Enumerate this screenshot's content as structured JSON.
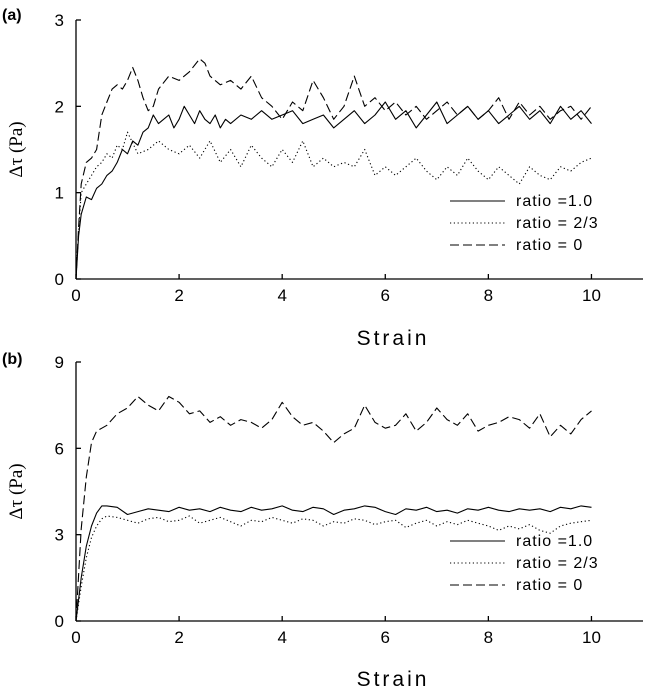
{
  "colors": {
    "background": "#ffffff",
    "ink": "#000000"
  },
  "chart_data": [
    {
      "type": "line",
      "panel_label": "(a)",
      "xlabel": "Strain",
      "ylabel": "Δτ (Pa)",
      "xlim": [
        0,
        11
      ],
      "ylim": [
        0,
        3
      ],
      "xticks": [
        0,
        2,
        4,
        6,
        8,
        10
      ],
      "yticks": [
        0,
        1,
        2,
        3
      ],
      "grid": false,
      "legend_position": "lower-right",
      "series": [
        {
          "name": "ratio =1.0",
          "style": "solid",
          "x": [
            0,
            0.05,
            0.1,
            0.2,
            0.3,
            0.4,
            0.5,
            0.6,
            0.7,
            0.8,
            0.9,
            1.0,
            1.1,
            1.2,
            1.3,
            1.4,
            1.5,
            1.6,
            1.7,
            1.8,
            1.9,
            2.0,
            2.1,
            2.2,
            2.3,
            2.4,
            2.5,
            2.6,
            2.7,
            2.8,
            2.9,
            3.0,
            3.2,
            3.4,
            3.6,
            3.8,
            4.0,
            4.2,
            4.4,
            4.6,
            4.8,
            5.0,
            5.2,
            5.4,
            5.6,
            5.8,
            6.0,
            6.2,
            6.4,
            6.6,
            6.8,
            7.0,
            7.2,
            7.4,
            7.6,
            7.8,
            8.0,
            8.2,
            8.4,
            8.6,
            8.8,
            9.0,
            9.2,
            9.4,
            9.6,
            9.8,
            10.0
          ],
          "y": [
            0,
            0.5,
            0.75,
            0.95,
            0.92,
            1.05,
            1.1,
            1.2,
            1.25,
            1.35,
            1.5,
            1.45,
            1.6,
            1.55,
            1.7,
            1.75,
            1.9,
            1.8,
            1.85,
            1.9,
            1.75,
            1.85,
            2.0,
            1.9,
            1.8,
            1.95,
            1.85,
            1.8,
            1.9,
            1.75,
            1.85,
            1.8,
            1.9,
            1.85,
            1.95,
            1.85,
            1.9,
            1.95,
            1.8,
            1.85,
            1.9,
            1.75,
            1.85,
            1.95,
            1.8,
            1.9,
            2.05,
            1.85,
            1.95,
            1.75,
            1.9,
            2.05,
            1.8,
            1.9,
            2.0,
            1.85,
            1.95,
            1.8,
            1.9,
            2.0,
            1.85,
            1.95,
            1.8,
            2.0,
            1.85,
            1.95,
            1.8
          ]
        },
        {
          "name": "ratio = 2/3",
          "style": "dotted",
          "x": [
            0,
            0.05,
            0.1,
            0.2,
            0.3,
            0.4,
            0.5,
            0.6,
            0.7,
            0.8,
            0.9,
            1.0,
            1.2,
            1.4,
            1.6,
            1.8,
            2.0,
            2.2,
            2.4,
            2.6,
            2.8,
            3.0,
            3.2,
            3.4,
            3.6,
            3.8,
            4.0,
            4.2,
            4.4,
            4.6,
            4.8,
            5.0,
            5.2,
            5.4,
            5.6,
            5.8,
            6.0,
            6.2,
            6.4,
            6.6,
            6.8,
            7.0,
            7.2,
            7.4,
            7.6,
            7.8,
            8.0,
            8.2,
            8.4,
            8.6,
            8.8,
            9.0,
            9.2,
            9.4,
            9.6,
            9.8,
            10.0
          ],
          "y": [
            0,
            0.55,
            1.0,
            1.1,
            1.2,
            1.3,
            1.35,
            1.45,
            1.4,
            1.55,
            1.5,
            1.7,
            1.45,
            1.5,
            1.6,
            1.5,
            1.45,
            1.55,
            1.4,
            1.6,
            1.35,
            1.5,
            1.3,
            1.55,
            1.4,
            1.3,
            1.5,
            1.35,
            1.6,
            1.3,
            1.4,
            1.3,
            1.35,
            1.3,
            1.5,
            1.2,
            1.3,
            1.2,
            1.3,
            1.4,
            1.25,
            1.15,
            1.3,
            1.2,
            1.4,
            1.25,
            1.15,
            1.3,
            1.2,
            1.1,
            1.3,
            1.2,
            1.15,
            1.3,
            1.25,
            1.35,
            1.4
          ]
        },
        {
          "name": "ratio = 0",
          "style": "dashed",
          "x": [
            0,
            0.05,
            0.1,
            0.2,
            0.3,
            0.4,
            0.5,
            0.6,
            0.7,
            0.8,
            0.9,
            1.0,
            1.1,
            1.2,
            1.3,
            1.4,
            1.5,
            1.6,
            1.8,
            2.0,
            2.2,
            2.4,
            2.5,
            2.6,
            2.8,
            3.0,
            3.2,
            3.4,
            3.6,
            3.8,
            4.0,
            4.2,
            4.4,
            4.6,
            4.8,
            5.0,
            5.2,
            5.4,
            5.6,
            5.8,
            6.0,
            6.2,
            6.4,
            6.6,
            6.8,
            7.0,
            7.2,
            7.4,
            7.6,
            7.8,
            8.0,
            8.2,
            8.4,
            8.6,
            8.8,
            9.0,
            9.2,
            9.4,
            9.6,
            9.8,
            10.0
          ],
          "y": [
            0,
            0.6,
            1.1,
            1.35,
            1.4,
            1.5,
            1.9,
            2.05,
            2.2,
            2.25,
            2.2,
            2.3,
            2.45,
            2.3,
            2.1,
            1.95,
            2.0,
            2.2,
            2.35,
            2.3,
            2.4,
            2.55,
            2.5,
            2.35,
            2.25,
            2.3,
            2.2,
            2.35,
            2.1,
            2.0,
            1.85,
            2.05,
            1.95,
            2.3,
            2.1,
            1.85,
            2.0,
            2.35,
            2.0,
            2.1,
            1.95,
            2.05,
            1.9,
            2.0,
            1.85,
            1.95,
            2.05,
            1.9,
            2.0,
            1.85,
            1.95,
            2.1,
            1.85,
            2.05,
            1.9,
            2.0,
            1.85,
            1.95,
            2.0,
            1.85,
            2.0
          ]
        }
      ]
    },
    {
      "type": "line",
      "panel_label": "(b)",
      "xlabel": "Strain",
      "ylabel": "Δτ (Pa)",
      "xlim": [
        0,
        11
      ],
      "ylim": [
        0,
        9
      ],
      "xticks": [
        0,
        2,
        4,
        6,
        8,
        10
      ],
      "yticks": [
        0,
        3,
        6,
        9
      ],
      "grid": false,
      "legend_position": "lower-right",
      "series": [
        {
          "name": "ratio =1.0",
          "style": "solid",
          "x": [
            0,
            0.1,
            0.2,
            0.3,
            0.4,
            0.5,
            0.6,
            0.8,
            1.0,
            1.2,
            1.4,
            1.6,
            1.8,
            2.0,
            2.2,
            2.4,
            2.6,
            2.8,
            3.0,
            3.2,
            3.4,
            3.6,
            3.8,
            4.0,
            4.2,
            4.4,
            4.6,
            4.8,
            5.0,
            5.2,
            5.4,
            5.6,
            5.8,
            6.0,
            6.2,
            6.4,
            6.6,
            6.8,
            7.0,
            7.2,
            7.4,
            7.6,
            7.8,
            8.0,
            8.2,
            8.4,
            8.6,
            8.8,
            9.0,
            9.2,
            9.4,
            9.6,
            9.8,
            10.0
          ],
          "y": [
            0,
            1.5,
            2.6,
            3.3,
            3.75,
            4.0,
            4.0,
            3.95,
            3.7,
            3.8,
            3.9,
            3.85,
            3.8,
            3.95,
            3.85,
            3.9,
            3.8,
            3.95,
            3.85,
            3.8,
            3.95,
            3.85,
            3.9,
            4.0,
            3.85,
            3.8,
            3.95,
            3.9,
            3.7,
            3.85,
            3.9,
            4.0,
            3.95,
            3.8,
            3.7,
            3.9,
            3.85,
            3.95,
            3.8,
            3.85,
            3.75,
            3.9,
            3.85,
            3.95,
            3.85,
            3.8,
            3.9,
            3.85,
            3.9,
            3.8,
            3.95,
            3.9,
            4.0,
            3.95
          ]
        },
        {
          "name": "ratio = 2/3",
          "style": "dotted",
          "x": [
            0,
            0.1,
            0.2,
            0.3,
            0.4,
            0.5,
            0.6,
            0.8,
            1.0,
            1.2,
            1.4,
            1.6,
            1.8,
            2.0,
            2.2,
            2.4,
            2.6,
            2.8,
            3.0,
            3.2,
            3.4,
            3.6,
            3.8,
            4.0,
            4.2,
            4.4,
            4.6,
            4.8,
            5.0,
            5.2,
            5.4,
            5.6,
            5.8,
            6.0,
            6.2,
            6.4,
            6.6,
            6.8,
            7.0,
            7.2,
            7.4,
            7.6,
            7.8,
            8.0,
            8.2,
            8.4,
            8.6,
            8.8,
            9.0,
            9.2,
            9.4,
            9.6,
            9.8,
            10.0
          ],
          "y": [
            0,
            1.2,
            2.2,
            2.9,
            3.3,
            3.55,
            3.65,
            3.6,
            3.5,
            3.4,
            3.55,
            3.6,
            3.45,
            3.5,
            3.65,
            3.4,
            3.5,
            3.6,
            3.45,
            3.3,
            3.5,
            3.45,
            3.6,
            3.5,
            3.4,
            3.55,
            3.5,
            3.3,
            3.45,
            3.4,
            3.55,
            3.5,
            3.35,
            3.45,
            3.5,
            3.25,
            3.4,
            3.5,
            3.3,
            3.45,
            3.35,
            3.5,
            3.4,
            3.3,
            3.15,
            3.3,
            3.2,
            3.35,
            3.15,
            3.05,
            3.3,
            3.4,
            3.45,
            3.5
          ]
        },
        {
          "name": "ratio = 0",
          "style": "dashed",
          "x": [
            0,
            0.1,
            0.2,
            0.3,
            0.4,
            0.5,
            0.6,
            0.8,
            1.0,
            1.2,
            1.4,
            1.6,
            1.8,
            2.0,
            2.2,
            2.4,
            2.6,
            2.8,
            3.0,
            3.2,
            3.4,
            3.6,
            3.8,
            4.0,
            4.2,
            4.4,
            4.6,
            4.8,
            5.0,
            5.2,
            5.4,
            5.6,
            5.8,
            6.0,
            6.2,
            6.4,
            6.6,
            6.8,
            7.0,
            7.2,
            7.4,
            7.6,
            7.8,
            8.0,
            8.2,
            8.4,
            8.6,
            8.8,
            9.0,
            9.2,
            9.4,
            9.6,
            9.8,
            10.0
          ],
          "y": [
            0,
            3.2,
            5.0,
            6.2,
            6.6,
            6.7,
            6.8,
            7.2,
            7.4,
            7.8,
            7.5,
            7.3,
            7.8,
            7.6,
            7.2,
            7.3,
            6.9,
            7.1,
            6.8,
            7.0,
            6.9,
            6.7,
            7.0,
            7.6,
            7.1,
            6.8,
            6.9,
            6.6,
            6.2,
            6.5,
            6.7,
            7.5,
            6.9,
            6.7,
            6.8,
            7.2,
            6.6,
            6.9,
            7.4,
            7.0,
            6.8,
            7.2,
            6.6,
            6.8,
            6.9,
            7.1,
            7.0,
            6.7,
            7.2,
            6.4,
            6.8,
            6.5,
            7.0,
            7.3
          ]
        }
      ]
    }
  ]
}
